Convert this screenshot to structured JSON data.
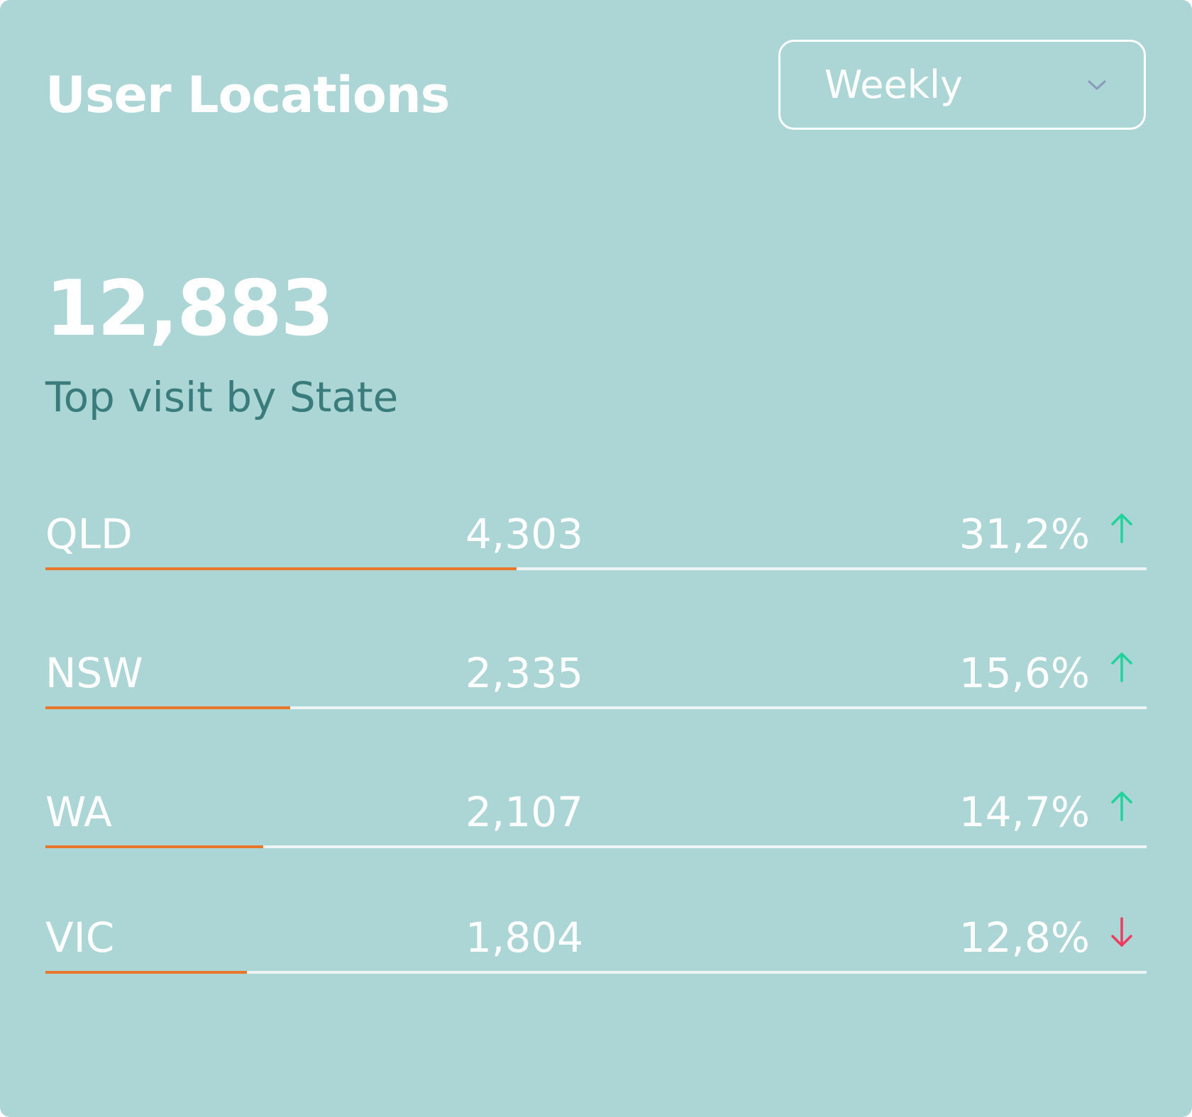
{
  "widget": {
    "title": "User Locations",
    "period_select": {
      "value": "Weekly",
      "icon": "chevron-down-icon"
    },
    "total": "12,883",
    "subtitle": "Top visit by State"
  },
  "colors": {
    "background": "#abd6d5",
    "subtitle": "#3a7c7b",
    "bar_fill": "#e8762b",
    "bar_track": "#eef5f5",
    "trend_up": "#1fd39a",
    "trend_down": "#f03a5f",
    "chevron": "#8a9ab8"
  },
  "states": [
    {
      "state": "QLD",
      "count": "4,303",
      "percent": "31,2%",
      "trend": "up",
      "bar_fraction": 0.428
    },
    {
      "state": "NSW",
      "count": "2,335",
      "percent": "15,6%",
      "trend": "up",
      "bar_fraction": 0.222
    },
    {
      "state": "WA",
      "count": "2,107",
      "percent": "14,7%",
      "trend": "up",
      "bar_fraction": 0.198
    },
    {
      "state": "VIC",
      "count": "1,804",
      "percent": "12,8%",
      "trend": "down",
      "bar_fraction": 0.183
    }
  ]
}
